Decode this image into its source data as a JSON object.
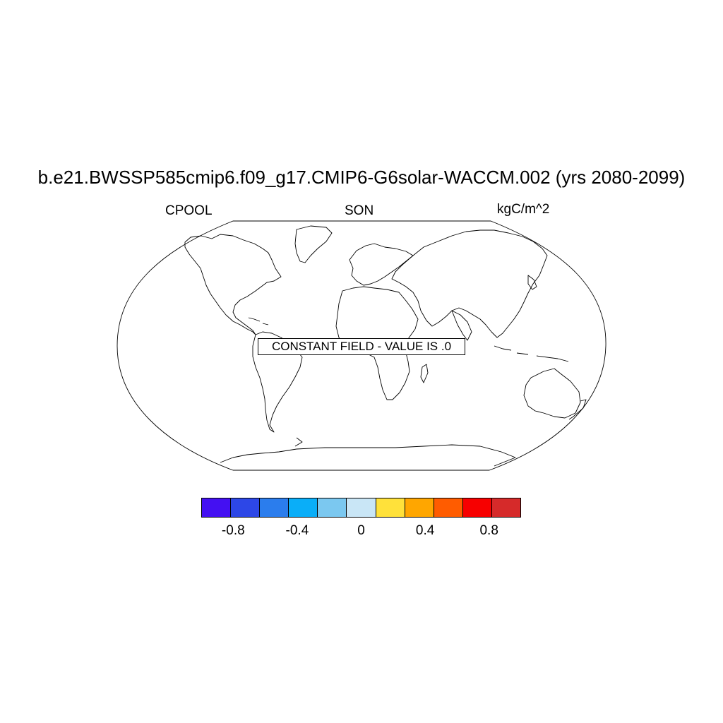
{
  "title": "b.e21.BWSSP585cmip6.f09_g17.CMIP6-G6solar-WACCM.002 (yrs 2080-2099)",
  "left_label": "CPOOL",
  "center_label": "SON",
  "right_label": "kgC/m^2",
  "notice": "CONSTANT FIELD - VALUE IS .0",
  "projection": "Robinson",
  "colorbar": {
    "colors": [
      "#4410f2",
      "#2d47e7",
      "#2b7ded",
      "#0aaef8",
      "#7bc8f0",
      "#c9e6f6",
      "#ffe13a",
      "#ffa600",
      "#ff5c00",
      "#f70000",
      "#d62a2a"
    ],
    "tick_labels": [
      "-0.8",
      "-0.4",
      "0",
      "0.4",
      "0.8"
    ],
    "tick_values": [
      -0.8,
      -0.4,
      0,
      0.4,
      0.8
    ],
    "levels": [
      -1.0,
      -0.8,
      -0.6,
      -0.4,
      -0.2,
      0,
      0.2,
      0.4,
      0.6,
      0.8,
      1.0
    ]
  }
}
